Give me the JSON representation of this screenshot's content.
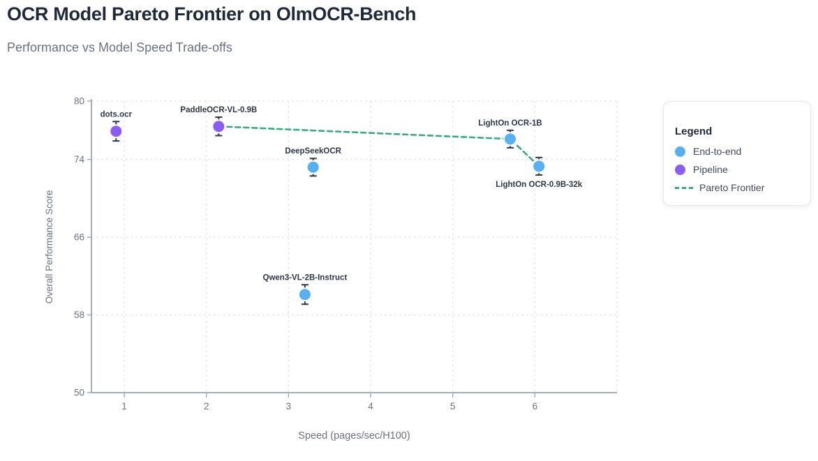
{
  "header": {
    "title": "OCR Model Pareto Frontier on OlmOCR-Bench",
    "subtitle": "Performance vs Model Speed Trade-offs"
  },
  "legend": {
    "title": "Legend",
    "items": [
      {
        "label": "End-to-end",
        "swatch": "dot",
        "color": "#57b0f2"
      },
      {
        "label": "Pipeline",
        "swatch": "dot",
        "color": "#8b5cf6"
      },
      {
        "label": "Pareto Frontier",
        "swatch": "dash",
        "color": "#36ab7d"
      }
    ]
  },
  "chart_data": {
    "type": "scatter",
    "title": "OCR Model Pareto Frontier on OlmOCR-Bench",
    "subtitle": "Performance vs Model Speed Trade-offs",
    "xlabel": "Speed (pages/sec/H100)",
    "ylabel": "Overall Performance Score",
    "xlim": [
      0.6,
      7.0
    ],
    "ylim": [
      50,
      80
    ],
    "xticks": [
      1,
      2,
      3,
      4,
      5,
      6
    ],
    "xgrid": [
      1,
      2,
      3,
      4,
      5,
      6,
      7
    ],
    "yticks": [
      50,
      58,
      66,
      74,
      80
    ],
    "ygrid": [
      58,
      66,
      74,
      80
    ],
    "grid": true,
    "legend_position": "right",
    "series": [
      {
        "name": "End-to-end",
        "color": "#57b0f2",
        "points": [
          {
            "label": "DeepSeekOCR",
            "x": 3.3,
            "y": 73.2,
            "yerr": 0.9,
            "label_pos": "top"
          },
          {
            "label": "Qwen3-VL-2B-Instruct",
            "x": 3.2,
            "y": 60.1,
            "yerr": 1.0,
            "label_pos": "top"
          },
          {
            "label": "LightOn OCR-1B",
            "x": 5.7,
            "y": 76.1,
            "yerr": 0.9,
            "label_pos": "top"
          },
          {
            "label": "LightOn OCR-0.9B-32k",
            "x": 6.05,
            "y": 73.3,
            "yerr": 0.9,
            "label_pos": "bottom"
          }
        ]
      },
      {
        "name": "Pipeline",
        "color": "#8b5cf6",
        "points": [
          {
            "label": "dots.ocr",
            "x": 0.9,
            "y": 76.9,
            "yerr": 1.0,
            "label_pos": "top"
          },
          {
            "label": "PaddleOCR-VL-0.9B",
            "x": 2.15,
            "y": 77.4,
            "yerr": 0.95,
            "label_pos": "top"
          }
        ]
      }
    ],
    "frontier": {
      "name": "Pareto Frontier",
      "color": "#36ab7d",
      "style": "dashed",
      "points": [
        {
          "x": 2.15,
          "y": 77.4
        },
        {
          "x": 5.7,
          "y": 76.1
        },
        {
          "x": 6.05,
          "y": 73.3
        }
      ]
    },
    "style_colors": {
      "error_bar": "#2d3748",
      "grid": "#e5e8ec",
      "axis": "#a6adb8",
      "tick_text": "#6b7280",
      "axis_label_text": "#6b7280",
      "point_label": "#2d3748",
      "point_stroke": "#ffffff"
    }
  }
}
